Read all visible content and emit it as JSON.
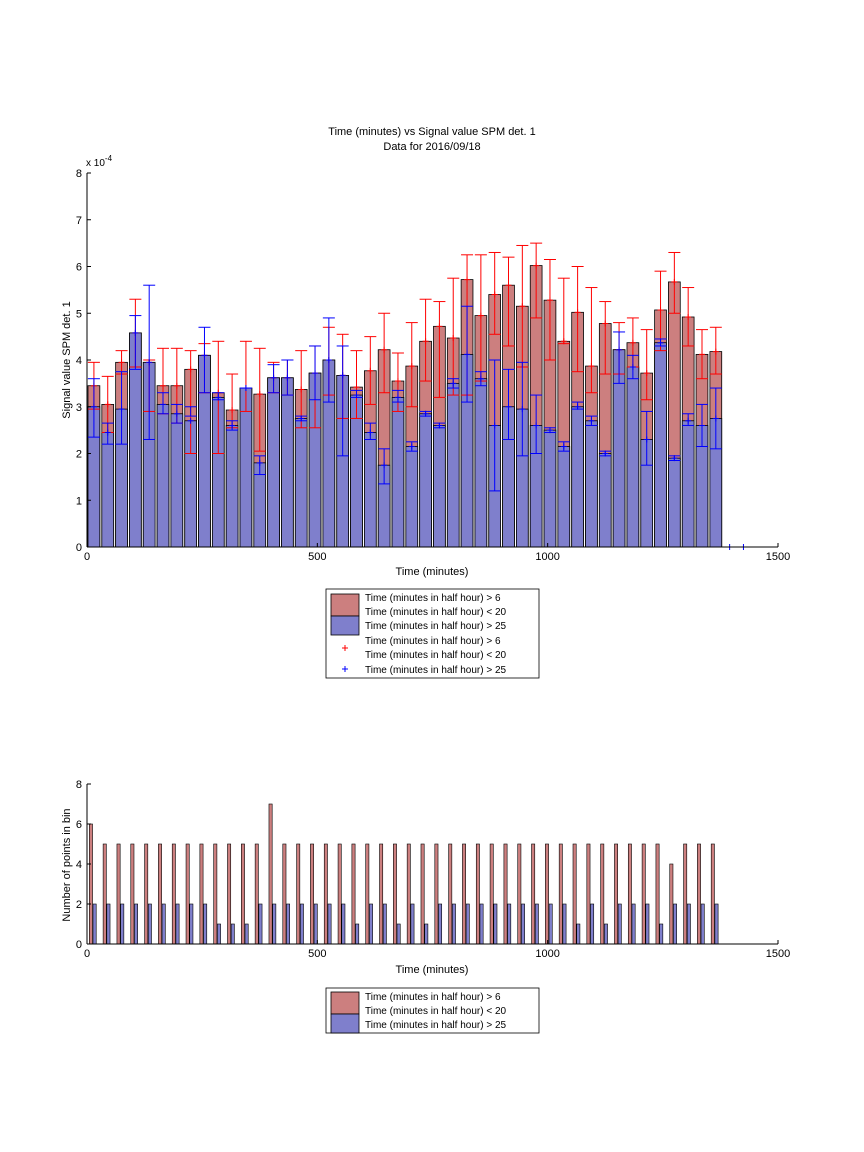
{
  "colors": {
    "red_fill": "#cc7f7f",
    "blue_fill": "#7f7fcc",
    "red_err": "#ff0000",
    "blue_err": "#0000ff",
    "axis": "#000000"
  },
  "chart_data": [
    {
      "type": "bar",
      "title": "Time (minutes) vs Signal value SPM det. 1",
      "subtitle": "Data for 2016/09/18",
      "xlabel": "Time (minutes)",
      "ylabel": "Signal value SPM det. 1",
      "y_exponent": "x 10",
      "y_exponent_power": "-4",
      "xlim": [
        0,
        1500
      ],
      "ylim": [
        0,
        8
      ],
      "x_ticks": [
        "0",
        "500",
        "1000",
        "1500"
      ],
      "y_ticks": [
        "0",
        "1",
        "2",
        "3",
        "4",
        "5",
        "6",
        "7",
        "8"
      ],
      "bin_starts": [
        0,
        30,
        60,
        90,
        120,
        150,
        180,
        210,
        240,
        270,
        300,
        330,
        360,
        390,
        420,
        450,
        480,
        510,
        540,
        570,
        600,
        630,
        660,
        690,
        720,
        750,
        780,
        810,
        840,
        870,
        900,
        930,
        960,
        990,
        1020,
        1050,
        1080,
        1110,
        1140,
        1170,
        1200,
        1230,
        1260,
        1290,
        1320,
        1350
      ],
      "bin_width": 30,
      "series": [
        {
          "name": "Time (minutes in half hour) > 6\nTime (minutes in half hour) < 20",
          "color": "#cc7f7f",
          "values": [
            3.45,
            3.05,
            3.95,
            4.58,
            3.95,
            3.45,
            3.45,
            3.8,
            4.1,
            3.3,
            2.93,
            3.4,
            3.27,
            3.62,
            3.62,
            3.37,
            3.72,
            4.0,
            3.67,
            3.42,
            3.77,
            4.22,
            3.55,
            3.87,
            4.4,
            4.72,
            4.47,
            5.72,
            4.95,
            5.4,
            5.6,
            5.15,
            6.02,
            5.28,
            4.4,
            5.02,
            3.87,
            4.78,
            4.22,
            4.37,
            3.72,
            5.07,
            5.67,
            4.92,
            4.12,
            4.18
          ],
          "err_low": [
            2.95,
            2.45,
            3.7,
            3.85,
            2.9,
            2.85,
            2.65,
            2.0,
            3.3,
            2.0,
            2.55,
            2.9,
            2.05,
            3.3,
            3.25,
            2.55,
            2.55,
            3.25,
            2.75,
            2.75,
            3.05,
            3.3,
            2.9,
            3.0,
            3.55,
            3.2,
            3.25,
            3.25,
            3.55,
            4.55,
            4.3,
            3.85,
            4.9,
            4.0,
            4.35,
            3.75,
            3.3,
            3.7,
            3.7,
            3.85,
            3.15,
            4.2,
            5.0,
            4.3,
            3.6,
            3.7
          ],
          "err_high": [
            3.95,
            3.65,
            4.2,
            5.3,
            4.0,
            4.25,
            4.25,
            4.2,
            4.35,
            4.4,
            3.7,
            4.4,
            4.25,
            3.95,
            4.0,
            4.2,
            4.3,
            4.7,
            4.55,
            4.2,
            4.5,
            5.0,
            4.15,
            4.8,
            5.3,
            5.25,
            5.75,
            6.25,
            6.25,
            6.3,
            6.2,
            6.45,
            6.5,
            6.15,
            5.75,
            6.0,
            5.55,
            5.25,
            4.8,
            4.9,
            4.65,
            5.9,
            6.3,
            5.55,
            4.65,
            4.7
          ]
        },
        {
          "name": "Time (minutes in half hour) > 25",
          "color": "#7f7fcc",
          "values": [
            3.0,
            2.45,
            2.95,
            4.58,
            3.95,
            3.05,
            2.85,
            2.7,
            4.1,
            3.2,
            2.6,
            3.4,
            1.8,
            3.62,
            3.62,
            2.75,
            3.72,
            4.0,
            3.67,
            3.25,
            2.45,
            1.75,
            3.2,
            2.15,
            2.85,
            2.6,
            3.5,
            4.12,
            3.6,
            2.6,
            3.0,
            2.95,
            2.6,
            2.5,
            2.15,
            3.0,
            2.7,
            2.0,
            4.22,
            3.85,
            2.3,
            4.37,
            1.9,
            2.7,
            2.6,
            2.75
          ],
          "err_low": [
            2.35,
            2.2,
            2.2,
            3.8,
            2.3,
            2.85,
            2.65,
            2.8,
            3.3,
            3.15,
            2.5,
            3.4,
            1.55,
            3.3,
            3.25,
            2.7,
            3.15,
            3.1,
            1.95,
            3.2,
            2.3,
            1.35,
            3.1,
            2.05,
            2.8,
            2.55,
            3.4,
            3.1,
            3.45,
            1.2,
            2.3,
            1.95,
            2.0,
            2.45,
            2.05,
            2.95,
            2.6,
            1.95,
            3.5,
            3.6,
            1.75,
            4.3,
            1.85,
            2.6,
            2.15,
            2.1
          ],
          "err_high": [
            3.6,
            2.65,
            3.75,
            4.95,
            5.6,
            3.3,
            3.05,
            3.0,
            4.7,
            3.3,
            2.7,
            3.4,
            1.95,
            3.9,
            4.0,
            2.8,
            4.3,
            4.9,
            4.3,
            3.35,
            2.65,
            2.1,
            3.35,
            2.25,
            2.9,
            2.65,
            3.6,
            5.15,
            3.75,
            4.0,
            3.8,
            3.95,
            3.25,
            2.55,
            2.25,
            3.1,
            2.8,
            2.05,
            4.6,
            4.1,
            2.9,
            4.45,
            1.95,
            2.85,
            3.05,
            3.4
          ]
        }
      ],
      "stray_markers_x": [
        1395,
        1425
      ],
      "legend": {
        "placement": "below",
        "entries": [
          {
            "lines": [
              "Time (minutes in half hour) > 6",
              "Time (minutes in half hour) < 20"
            ],
            "kind": "patch",
            "color": "#cc7f7f"
          },
          {
            "lines": [
              "Time (minutes in half hour) > 25"
            ],
            "kind": "patch",
            "color": "#7f7fcc"
          },
          {
            "lines": [
              "Time (minutes in half hour) > 6",
              "Time (minutes in half hour) < 20"
            ],
            "kind": "marker",
            "color": "#ff0000"
          },
          {
            "lines": [
              "Time (minutes in half hour) > 25"
            ],
            "kind": "marker",
            "color": "#0000ff"
          }
        ]
      },
      "grid": false
    },
    {
      "type": "bar",
      "title": "",
      "xlabel": "Time (minutes)",
      "ylabel": "Number of points in bin",
      "xlim": [
        0,
        1500
      ],
      "ylim": [
        0,
        8
      ],
      "x_ticks": [
        "0",
        "500",
        "1000",
        "1500"
      ],
      "y_ticks": [
        "0",
        "2",
        "4",
        "6",
        "8"
      ],
      "bin_starts": [
        0,
        30,
        60,
        90,
        120,
        150,
        180,
        210,
        240,
        270,
        300,
        330,
        360,
        390,
        420,
        450,
        480,
        510,
        540,
        570,
        600,
        630,
        660,
        690,
        720,
        750,
        780,
        810,
        840,
        870,
        900,
        930,
        960,
        990,
        1020,
        1050,
        1080,
        1110,
        1140,
        1170,
        1200,
        1230,
        1260,
        1290,
        1320,
        1350
      ],
      "series": [
        {
          "name": "Time (minutes in half hour) > 6\nTime (minutes in half hour) < 20",
          "color": "#cc7f7f",
          "values": [
            6,
            5,
            5,
            5,
            5,
            5,
            5,
            5,
            5,
            5,
            5,
            5,
            5,
            7,
            5,
            5,
            5,
            5,
            5,
            5,
            5,
            5,
            5,
            5,
            5,
            5,
            5,
            5,
            5,
            5,
            5,
            5,
            5,
            5,
            5,
            5,
            5,
            5,
            5,
            5,
            5,
            5,
            4,
            5,
            5,
            5
          ]
        },
        {
          "name": "Time (minutes in half hour) > 25",
          "color": "#7f7fcc",
          "values": [
            2,
            2,
            2,
            2,
            2,
            2,
            2,
            2,
            2,
            1,
            1,
            1,
            2,
            2,
            2,
            2,
            2,
            2,
            2,
            1,
            2,
            2,
            1,
            2,
            1,
            2,
            2,
            2,
            2,
            2,
            2,
            2,
            2,
            2,
            2,
            1,
            2,
            1,
            2,
            2,
            2,
            1,
            2,
            2,
            2,
            2
          ]
        }
      ],
      "legend": {
        "placement": "below",
        "entries": [
          {
            "lines": [
              "Time (minutes in half hour) > 6",
              "Time (minutes in half hour) < 20"
            ],
            "kind": "patch",
            "color": "#cc7f7f"
          },
          {
            "lines": [
              "Time (minutes in half hour) > 25"
            ],
            "kind": "patch",
            "color": "#7f7fcc"
          }
        ]
      },
      "grid": false
    }
  ]
}
